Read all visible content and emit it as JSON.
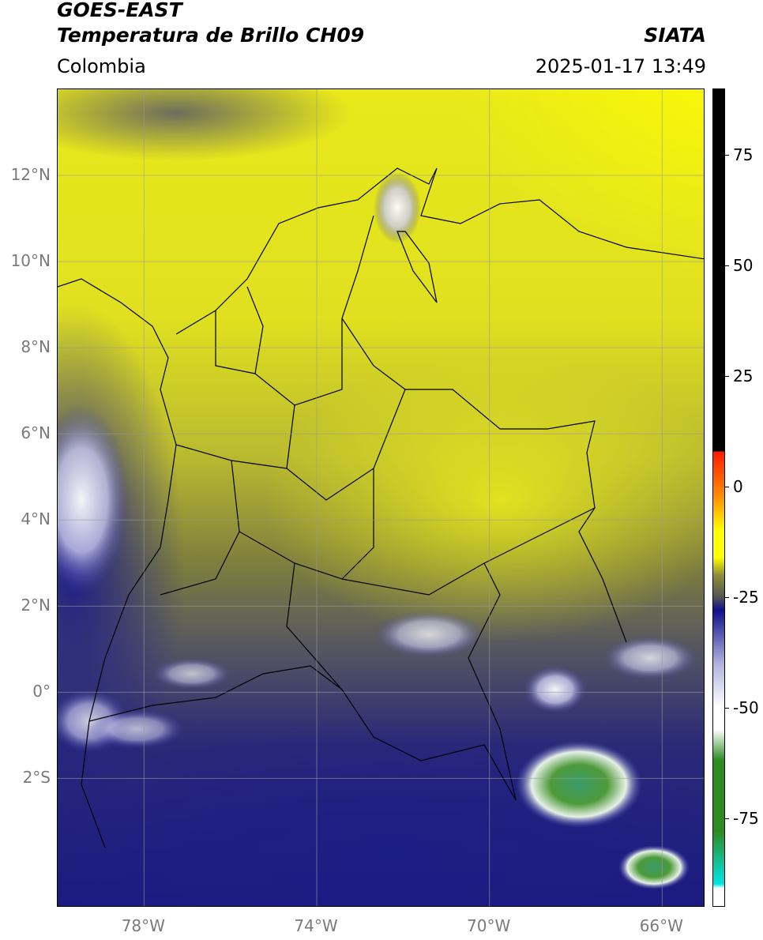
{
  "header": {
    "title_line1": "GOES-EAST",
    "title_line2": "Temperatura de Brillo CH09",
    "brand": "SIATA",
    "region": "Colombia",
    "datetime": "2025-01-17 13:49"
  },
  "map": {
    "lon_range": [
      -80,
      -65
    ],
    "lat_range": [
      -5,
      14
    ],
    "gridlines": true,
    "lat_ticks": [
      {
        "value": 12,
        "label": "12°N"
      },
      {
        "value": 10,
        "label": "10°N"
      },
      {
        "value": 8,
        "label": "8°N"
      },
      {
        "value": 6,
        "label": "6°N"
      },
      {
        "value": 4,
        "label": "4°N"
      },
      {
        "value": 2,
        "label": "2°N"
      },
      {
        "value": 0,
        "label": "0°"
      },
      {
        "value": -2,
        "label": "2°S"
      }
    ],
    "lon_ticks": [
      {
        "value": -78,
        "label": "78°W"
      },
      {
        "value": -74,
        "label": "74°W"
      },
      {
        "value": -70,
        "label": "70°W"
      },
      {
        "value": -66,
        "label": "66°W"
      }
    ]
  },
  "colorbar": {
    "range": [
      -95,
      90
    ],
    "ticks": [
      {
        "value": 75,
        "label": "75"
      },
      {
        "value": 50,
        "label": "50"
      },
      {
        "value": 25,
        "label": "25"
      },
      {
        "value": 0,
        "label": "0"
      },
      {
        "value": -25,
        "label": "-25"
      },
      {
        "value": -50,
        "label": "-50"
      },
      {
        "value": -75,
        "label": "-75"
      }
    ],
    "colors": {
      "black": "#000000",
      "red": "#ff1a00",
      "orange": "#ff8c00",
      "yellow": "#ffff00",
      "olive": "#8f8f35",
      "gray": "#555555",
      "navy": "#10108a",
      "lavender": "#b0b0e0",
      "white": "#ffffff",
      "green": "#2e8b22",
      "cyan": "#00e5e5"
    }
  }
}
